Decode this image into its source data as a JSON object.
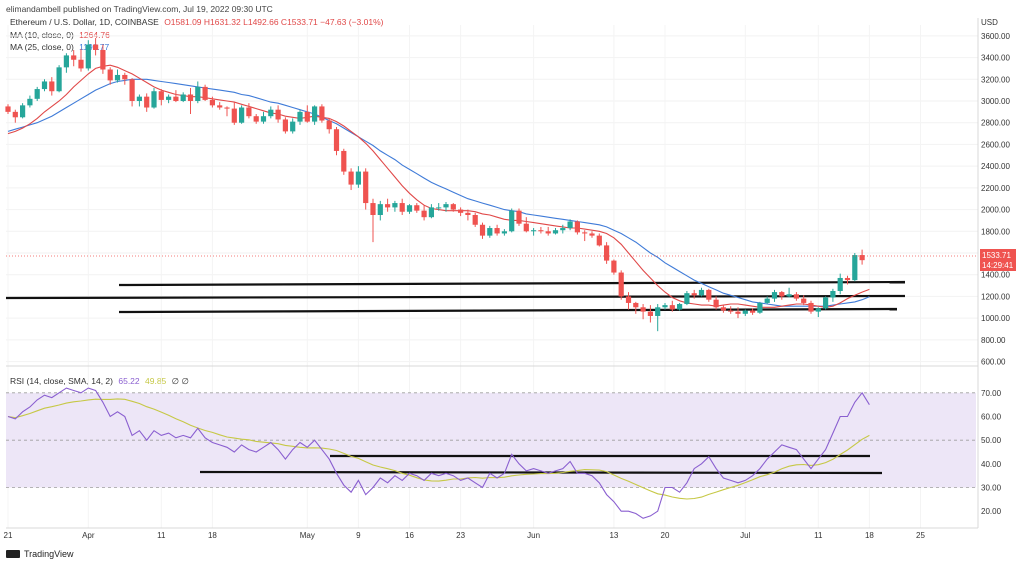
{
  "publisher_note": "elimandambell published on TradingView.com, Jul 19, 2022 09:30 UTC",
  "legend": {
    "title": "Ethereum / U.S. Dollar, 1D, COINBASE",
    "ohlc": "O1581.09  H1631.32  L1492.66  C1533.71  −47.63 (−3.01%)",
    "ma10_label": "MA (10, close, 0)",
    "ma10_value": "1264.76",
    "ma25_label": "MA (25, close, 0)",
    "ma25_value": "1196.77",
    "rsi_label": "RSI (14, close, SMA, 14, 2)",
    "rsi_value": "65.22",
    "rsi_ma_value": "49.85",
    "rsi_extra": "∅  ∅"
  },
  "price_tag": {
    "price": "1533.71",
    "countdown": "14:29:41"
  },
  "footer": {
    "brand": "TradingView"
  },
  "colors": {
    "up": "#26a69a",
    "down": "#ef5350",
    "ma10": "#e04848",
    "ma25": "#3f7bd8",
    "rsi": "#8a5fd0",
    "rsi_ma": "#c6c845",
    "rsi_band": "#ede6f7"
  },
  "chart_data": {
    "type": "candlestick",
    "currency_label": "USD",
    "price_axis": {
      "ticks": [
        "3600.00",
        "3400.00",
        "3200.00",
        "3000.00",
        "2800.00",
        "2600.00",
        "2400.00",
        "2200.00",
        "2000.00",
        "1800.00",
        "1600.00",
        "1400.00",
        "1200.00",
        "1000.00",
        "800.00",
        "600.00"
      ],
      "range": [
        550,
        3700
      ]
    },
    "rsi_axis": {
      "ticks": [
        "70.00",
        "60.00",
        "50.00",
        "40.00",
        "30.00",
        "20.00"
      ],
      "range": [
        15,
        75
      ],
      "bands": [
        30,
        50,
        70
      ]
    },
    "x_axis_labels": [
      "21",
      "Apr",
      "11",
      "18",
      "May",
      "9",
      "16",
      "23",
      "Jun",
      "13",
      "20",
      "Jul",
      "11",
      "18",
      "25"
    ],
    "x_axis_label_index": [
      0,
      11,
      21,
      28,
      41,
      48,
      55,
      62,
      72,
      83,
      90,
      101,
      111,
      118,
      125
    ],
    "candles": [
      [
        2950,
        2970,
        2880,
        2900
      ],
      [
        2900,
        2920,
        2800,
        2850
      ],
      [
        2850,
        2980,
        2840,
        2960
      ],
      [
        2960,
        3050,
        2940,
        3020
      ],
      [
        3020,
        3130,
        3000,
        3110
      ],
      [
        3110,
        3200,
        3090,
        3180
      ],
      [
        3180,
        3220,
        3050,
        3090
      ],
      [
        3090,
        3330,
        3080,
        3310
      ],
      [
        3310,
        3440,
        3260,
        3420
      ],
      [
        3420,
        3470,
        3320,
        3380
      ],
      [
        3380,
        3480,
        3270,
        3300
      ],
      [
        3300,
        3560,
        3280,
        3520
      ],
      [
        3520,
        3580,
        3420,
        3470
      ],
      [
        3470,
        3520,
        3250,
        3290
      ],
      [
        3290,
        3310,
        3150,
        3190
      ],
      [
        3190,
        3290,
        3170,
        3240
      ],
      [
        3240,
        3260,
        3150,
        3200
      ],
      [
        3200,
        3210,
        2950,
        3000
      ],
      [
        3000,
        3060,
        2950,
        3040
      ],
      [
        3040,
        3070,
        2900,
        2940
      ],
      [
        2940,
        3120,
        2930,
        3090
      ],
      [
        3090,
        3110,
        2960,
        3010
      ],
      [
        3010,
        3060,
        2980,
        3040
      ],
      [
        3040,
        3100,
        2990,
        3000
      ],
      [
        3000,
        3080,
        2990,
        3060
      ],
      [
        3060,
        3120,
        2880,
        3000
      ],
      [
        3000,
        3180,
        2980,
        3130
      ],
      [
        3130,
        3150,
        3000,
        3010
      ],
      [
        3010,
        3040,
        2940,
        2960
      ],
      [
        2960,
        2990,
        2920,
        2940
      ],
      [
        2940,
        2950,
        2860,
        2930
      ],
      [
        2930,
        2990,
        2780,
        2800
      ],
      [
        2800,
        2960,
        2790,
        2940
      ],
      [
        2940,
        2980,
        2840,
        2860
      ],
      [
        2860,
        2880,
        2790,
        2810
      ],
      [
        2810,
        2900,
        2790,
        2860
      ],
      [
        2860,
        2950,
        2840,
        2920
      ],
      [
        2920,
        2960,
        2800,
        2830
      ],
      [
        2830,
        2850,
        2700,
        2720
      ],
      [
        2720,
        2840,
        2700,
        2810
      ],
      [
        2810,
        2920,
        2780,
        2900
      ],
      [
        2900,
        2960,
        2800,
        2810
      ],
      [
        2810,
        2960,
        2780,
        2950
      ],
      [
        2950,
        2970,
        2800,
        2820
      ],
      [
        2820,
        2840,
        2700,
        2740
      ],
      [
        2740,
        2760,
        2500,
        2540
      ],
      [
        2540,
        2560,
        2320,
        2350
      ],
      [
        2350,
        2380,
        2180,
        2230
      ],
      [
        2230,
        2400,
        2200,
        2350
      ],
      [
        2350,
        2380,
        2000,
        2060
      ],
      [
        2060,
        2100,
        1700,
        1950
      ],
      [
        1950,
        2080,
        1900,
        2050
      ],
      [
        2050,
        2100,
        1980,
        2020
      ],
      [
        2020,
        2080,
        1980,
        2060
      ],
      [
        2060,
        2100,
        1950,
        1980
      ],
      [
        1980,
        2050,
        1960,
        2040
      ],
      [
        2040,
        2060,
        1970,
        1990
      ],
      [
        1990,
        2040,
        1900,
        1930
      ],
      [
        1930,
        2050,
        1920,
        2020
      ],
      [
        2020,
        2060,
        1990,
        2020
      ],
      [
        2020,
        2070,
        1980,
        2050
      ],
      [
        2050,
        2060,
        1980,
        2000
      ],
      [
        2000,
        2020,
        1940,
        1970
      ],
      [
        1970,
        2000,
        1900,
        1950
      ],
      [
        1950,
        1970,
        1840,
        1860
      ],
      [
        1860,
        1880,
        1730,
        1760
      ],
      [
        1760,
        1850,
        1740,
        1830
      ],
      [
        1830,
        1860,
        1760,
        1780
      ],
      [
        1780,
        1820,
        1760,
        1800
      ],
      [
        1800,
        2010,
        1790,
        1990
      ],
      [
        1990,
        2010,
        1850,
        1870
      ],
      [
        1870,
        1930,
        1790,
        1800
      ],
      [
        1800,
        1830,
        1760,
        1810
      ],
      [
        1810,
        1840,
        1780,
        1800
      ],
      [
        1800,
        1840,
        1760,
        1780
      ],
      [
        1780,
        1830,
        1770,
        1810
      ],
      [
        1810,
        1860,
        1780,
        1830
      ],
      [
        1830,
        1910,
        1810,
        1890
      ],
      [
        1890,
        1900,
        1770,
        1790
      ],
      [
        1790,
        1810,
        1710,
        1780
      ],
      [
        1780,
        1800,
        1740,
        1760
      ],
      [
        1760,
        1780,
        1660,
        1670
      ],
      [
        1670,
        1700,
        1500,
        1530
      ],
      [
        1530,
        1540,
        1400,
        1420
      ],
      [
        1420,
        1440,
        1170,
        1200
      ],
      [
        1200,
        1240,
        1080,
        1140
      ],
      [
        1140,
        1150,
        1040,
        1100
      ],
      [
        1100,
        1130,
        990,
        1060
      ],
      [
        1060,
        1120,
        960,
        1020
      ],
      [
        1020,
        1130,
        880,
        1100
      ],
      [
        1100,
        1140,
        1080,
        1120
      ],
      [
        1120,
        1160,
        1060,
        1080
      ],
      [
        1080,
        1140,
        1070,
        1130
      ],
      [
        1130,
        1250,
        1120,
        1230
      ],
      [
        1230,
        1260,
        1180,
        1210
      ],
      [
        1210,
        1280,
        1200,
        1260
      ],
      [
        1260,
        1270,
        1150,
        1170
      ],
      [
        1170,
        1200,
        1080,
        1100
      ],
      [
        1100,
        1120,
        1050,
        1070
      ],
      [
        1070,
        1110,
        1040,
        1060
      ],
      [
        1060,
        1100,
        1000,
        1040
      ],
      [
        1040,
        1080,
        1020,
        1070
      ],
      [
        1070,
        1090,
        1030,
        1050
      ],
      [
        1050,
        1150,
        1040,
        1140
      ],
      [
        1140,
        1200,
        1130,
        1180
      ],
      [
        1180,
        1260,
        1150,
        1240
      ],
      [
        1240,
        1250,
        1170,
        1200
      ],
      [
        1200,
        1280,
        1190,
        1220
      ],
      [
        1220,
        1240,
        1160,
        1180
      ],
      [
        1180,
        1210,
        1120,
        1140
      ],
      [
        1140,
        1160,
        1040,
        1060
      ],
      [
        1060,
        1100,
        1010,
        1090
      ],
      [
        1090,
        1200,
        1080,
        1190
      ],
      [
        1190,
        1270,
        1150,
        1250
      ],
      [
        1250,
        1410,
        1220,
        1370
      ],
      [
        1370,
        1390,
        1310,
        1350
      ],
      [
        1350,
        1600,
        1340,
        1581
      ],
      [
        1581,
        1631,
        1493,
        1534
      ]
    ],
    "ma10": [
      2700,
      2720,
      2750,
      2790,
      2840,
      2900,
      2950,
      3000,
      3060,
      3130,
      3190,
      3250,
      3300,
      3320,
      3330,
      3310,
      3280,
      3250,
      3210,
      3170,
      3130,
      3100,
      3080,
      3060,
      3050,
      3040,
      3040,
      3030,
      3020,
      3010,
      3000,
      2990,
      2970,
      2950,
      2930,
      2910,
      2890,
      2880,
      2860,
      2850,
      2840,
      2850,
      2860,
      2850,
      2840,
      2810,
      2770,
      2720,
      2670,
      2610,
      2540,
      2460,
      2380,
      2300,
      2220,
      2150,
      2090,
      2040,
      2010,
      2000,
      1990,
      1990,
      1990,
      1990,
      1980,
      1960,
      1950,
      1930,
      1910,
      1900,
      1900,
      1890,
      1880,
      1870,
      1860,
      1850,
      1840,
      1830,
      1830,
      1820,
      1810,
      1800,
      1780,
      1740,
      1680,
      1600,
      1520,
      1440,
      1370,
      1300,
      1240,
      1190,
      1160,
      1140,
      1130,
      1120,
      1120,
      1110,
      1120,
      1130,
      1130,
      1120,
      1110,
      1100,
      1100,
      1100,
      1110,
      1120,
      1130,
      1130,
      1120,
      1110,
      1100,
      1110,
      1140,
      1180,
      1210,
      1240,
      1265
    ],
    "ma25": [
      2720,
      2740,
      2760,
      2780,
      2800,
      2830,
      2860,
      2900,
      2940,
      2980,
      3020,
      3060,
      3100,
      3130,
      3160,
      3180,
      3190,
      3200,
      3200,
      3200,
      3190,
      3180,
      3170,
      3160,
      3150,
      3140,
      3130,
      3120,
      3110,
      3100,
      3090,
      3080,
      3060,
      3050,
      3030,
      3010,
      2990,
      2980,
      2960,
      2940,
      2920,
      2900,
      2880,
      2850,
      2820,
      2790,
      2750,
      2710,
      2670,
      2630,
      2590,
      2540,
      2500,
      2460,
      2410,
      2370,
      2330,
      2290,
      2250,
      2220,
      2190,
      2160,
      2130,
      2100,
      2080,
      2060,
      2040,
      2020,
      2000,
      1990,
      1980,
      1960,
      1950,
      1940,
      1930,
      1920,
      1910,
      1900,
      1890,
      1880,
      1870,
      1860,
      1840,
      1810,
      1780,
      1740,
      1700,
      1650,
      1600,
      1560,
      1510,
      1470,
      1430,
      1390,
      1350,
      1320,
      1290,
      1260,
      1230,
      1210,
      1190,
      1170,
      1150,
      1140,
      1130,
      1120,
      1110,
      1110,
      1110,
      1110,
      1110,
      1110,
      1110,
      1120,
      1130,
      1140,
      1150,
      1170,
      1197
    ],
    "rsi": [
      60,
      59,
      62,
      64,
      67,
      69,
      68,
      70,
      72,
      71,
      70,
      72,
      71,
      66,
      60,
      62,
      60,
      52,
      54,
      50,
      54,
      52,
      53,
      51,
      52,
      51,
      55,
      51,
      49,
      48,
      47,
      45,
      48,
      46,
      45,
      47,
      49,
      46,
      42,
      46,
      49,
      47,
      50,
      46,
      42,
      36,
      31,
      28,
      33,
      27,
      30,
      34,
      32,
      35,
      33,
      36,
      35,
      33,
      36,
      35,
      36,
      35,
      33,
      34,
      32,
      30,
      36,
      34,
      36,
      44,
      40,
      37,
      38,
      37,
      36,
      37,
      38,
      41,
      36,
      36,
      35,
      32,
      27,
      24,
      20,
      20,
      19,
      17,
      18,
      20,
      30,
      30,
      28,
      32,
      38,
      40,
      43,
      38,
      34,
      33,
      32,
      33,
      35,
      38,
      42,
      45,
      48,
      47,
      46,
      42,
      38,
      42,
      46,
      53,
      60,
      60,
      66,
      70,
      65
    ]
  }
}
